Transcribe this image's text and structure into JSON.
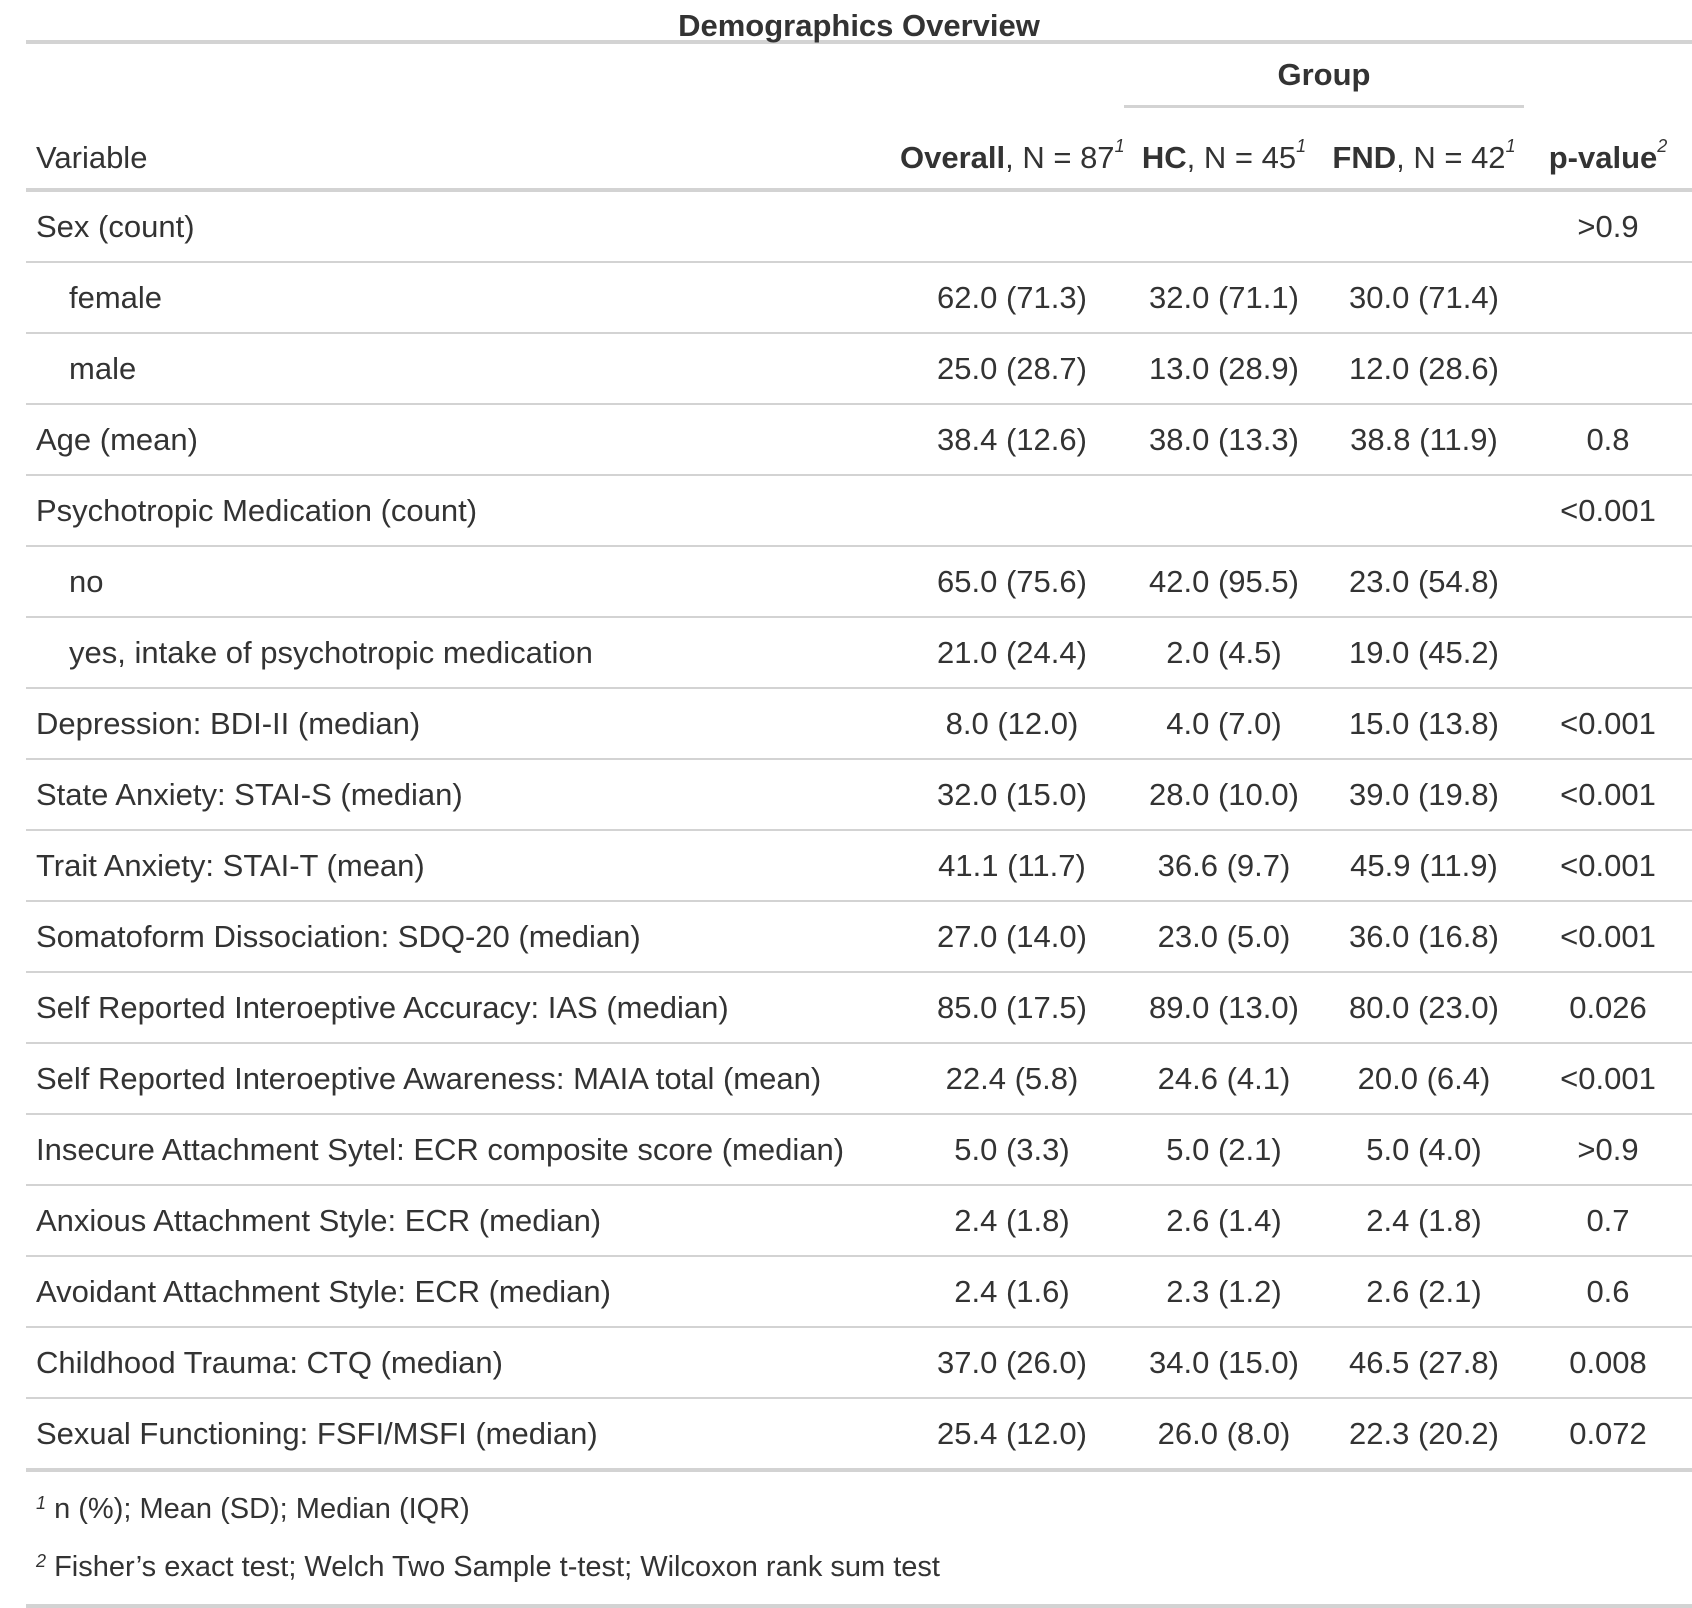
{
  "title": "Demographics Overview",
  "spanner": "Group",
  "columns": {
    "variable": "Variable",
    "overall_name": "Overall",
    "overall_n": ", N = 87",
    "overall_fn": "1",
    "hc_name": "HC",
    "hc_n": ", N = 45",
    "hc_fn": "1",
    "fnd_name": "FND",
    "fnd_n": ", N = 42",
    "fnd_fn": "1",
    "p_name": "p-value",
    "p_fn": "2"
  },
  "rows": [
    {
      "label": "Sex (count)",
      "overall": "",
      "hc": "",
      "fnd": "",
      "p": ">0.9"
    },
    {
      "label": "female",
      "overall": "62.0 (71.3)",
      "hc": "32.0 (71.1)",
      "fnd": "30.0 (71.4)",
      "p": ""
    },
    {
      "label": "male",
      "overall": "25.0 (28.7)",
      "hc": "13.0 (28.9)",
      "fnd": "12.0 (28.6)",
      "p": ""
    },
    {
      "label": "Age (mean)",
      "overall": "38.4 (12.6)",
      "hc": "38.0 (13.3)",
      "fnd": "38.8 (11.9)",
      "p": "0.8"
    },
    {
      "label": "Psychotropic Medication (count)",
      "overall": "",
      "hc": "",
      "fnd": "",
      "p": "<0.001"
    },
    {
      "label": "no",
      "overall": "65.0 (75.6)",
      "hc": "42.0 (95.5)",
      "fnd": "23.0 (54.8)",
      "p": ""
    },
    {
      "label": "yes, intake of psychotropic medication",
      "overall": "21.0 (24.4)",
      "hc": "2.0 (4.5)",
      "fnd": "19.0 (45.2)",
      "p": ""
    },
    {
      "label": "Depression: BDI-II (median)",
      "overall": "8.0 (12.0)",
      "hc": "4.0 (7.0)",
      "fnd": "15.0 (13.8)",
      "p": "<0.001"
    },
    {
      "label": "State Anxiety: STAI-S (median)",
      "overall": "32.0 (15.0)",
      "hc": "28.0 (10.0)",
      "fnd": "39.0 (19.8)",
      "p": "<0.001"
    },
    {
      "label": "Trait Anxiety: STAI-T (mean)",
      "overall": "41.1 (11.7)",
      "hc": "36.6 (9.7)",
      "fnd": "45.9 (11.9)",
      "p": "<0.001"
    },
    {
      "label": "Somatoform Dissociation: SDQ-20 (median)",
      "overall": "27.0 (14.0)",
      "hc": "23.0 (5.0)",
      "fnd": "36.0 (16.8)",
      "p": "<0.001"
    },
    {
      "label": "Self Reported Interoeptive Accuracy: IAS (median)",
      "overall": "85.0 (17.5)",
      "hc": "89.0 (13.0)",
      "fnd": "80.0 (23.0)",
      "p": "0.026"
    },
    {
      "label": "Self Reported Interoeptive Awareness: MAIA total (mean)",
      "overall": "22.4 (5.8)",
      "hc": "24.6 (4.1)",
      "fnd": "20.0 (6.4)",
      "p": "<0.001"
    },
    {
      "label": "Insecure Attachment Sytel: ECR composite score (median)",
      "overall": "5.0 (3.3)",
      "hc": "5.0 (2.1)",
      "fnd": "5.0 (4.0)",
      "p": ">0.9"
    },
    {
      "label": "Anxious Attachment Style: ECR (median)",
      "overall": "2.4 (1.8)",
      "hc": "2.6 (1.4)",
      "fnd": "2.4 (1.8)",
      "p": "0.7"
    },
    {
      "label": "Avoidant Attachment Style: ECR (median)",
      "overall": "2.4 (1.6)",
      "hc": "2.3 (1.2)",
      "fnd": "2.6 (2.1)",
      "p": "0.6"
    },
    {
      "label": "Childhood Trauma: CTQ (median)",
      "overall": "37.0 (26.0)",
      "hc": "34.0 (15.0)",
      "fnd": "46.5 (27.8)",
      "p": "0.008"
    },
    {
      "label": "Sexual Functioning: FSFI/MSFI (median)",
      "overall": "25.4 (12.0)",
      "hc": "26.0 (8.0)",
      "fnd": "22.3 (20.2)",
      "p": "0.072"
    }
  ],
  "footnotes": [
    {
      "mark": "1",
      "text": "n (%); Mean (SD); Median (IQR)"
    },
    {
      "mark": "2",
      "text": "Fisher’s exact test; Welch Two Sample t-test; Wilcoxon rank sum test"
    }
  ]
}
